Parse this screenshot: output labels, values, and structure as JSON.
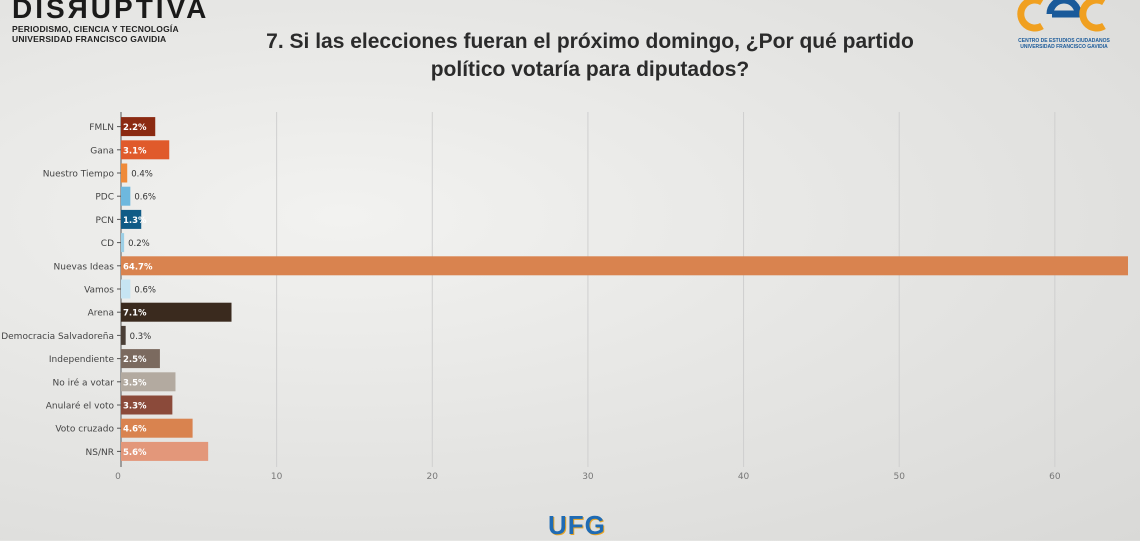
{
  "header": {
    "brand": "DISЯUPTIVA",
    "subtitle_line1": "PERIODISMO, CIENCIA Y TECNOLOGÍA",
    "subtitle_line2": "UNIVERSIDAD FRANCISCO GAVIDIA",
    "title_line1": "7. Si las elecciones fueran el próximo domingo, ¿Por qué partido",
    "title_line2": "político votaría para diputados?",
    "right_logo_caption1": "CENTRO DE ESTUDIOS CIUDADANOS",
    "right_logo_caption2": "UNIVERSIDAD FRANCISCO GAVIDIA",
    "bottom_logo": "UFG"
  },
  "chart_data": {
    "type": "bar",
    "orientation": "horizontal",
    "categories": [
      "FMLN",
      "Gana",
      "Nuestro Tiempo",
      "PDC",
      "PCN",
      "CD",
      "Nuevas Ideas",
      "Vamos",
      "Arena",
      "Democracia Salvadoreña",
      "Independiente",
      "No iré a votar",
      "Anularé el voto",
      "Voto cruzado",
      "NS/NR"
    ],
    "values": [
      2.2,
      3.1,
      0.4,
      0.6,
      1.3,
      0.2,
      64.7,
      0.6,
      7.1,
      0.3,
      2.5,
      3.5,
      3.3,
      4.6,
      5.6
    ],
    "labels": [
      "2.2%",
      "3.1%",
      "0.4%",
      "0.6%",
      "1.3%",
      "0.2%",
      "64.7%",
      "0.6%",
      "7.1%",
      "0.3%",
      "2.5%",
      "3.5%",
      "3.3%",
      "4.6%",
      "5.6%"
    ],
    "colors": [
      "#8b2a12",
      "#e05a2b",
      "#ef8a3a",
      "#6eb8de",
      "#0f5b86",
      "#9ccfe6",
      "#d9834f",
      "#c6e4f2",
      "#3a2a1e",
      "#4a3f37",
      "#7b6a5f",
      "#b3aaa0",
      "#8b4a3a",
      "#d9834f",
      "#e3977a"
    ],
    "xlim": [
      0,
      64.7
    ],
    "xticks": [
      0,
      10,
      20,
      30,
      40,
      50,
      60
    ],
    "grid": true
  }
}
